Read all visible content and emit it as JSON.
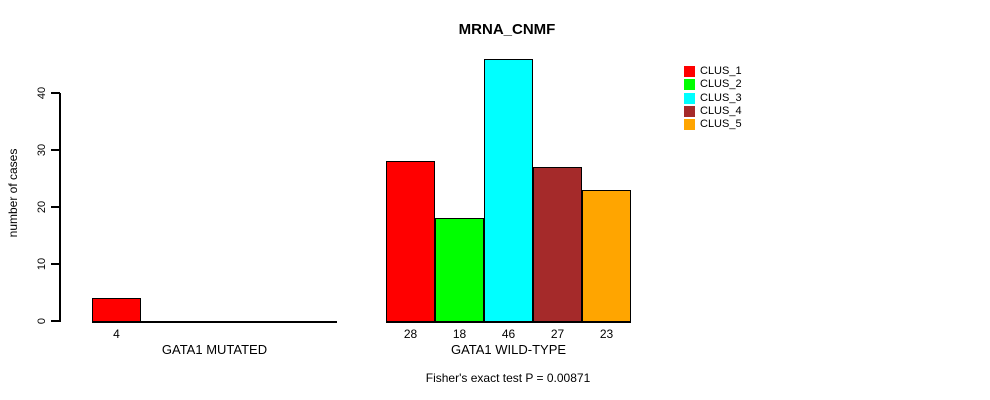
{
  "chart_data": {
    "type": "bar",
    "title": "MRNA_CNMF",
    "xlabel": "",
    "ylabel": "number of cases",
    "ylim": [
      0,
      46
    ],
    "yticks": [
      0,
      10,
      20,
      30,
      40
    ],
    "grid": false,
    "legend_position": "top-right",
    "categories": [
      "GATA1 MUTATED",
      "GATA1 WILD-TYPE"
    ],
    "series": [
      {
        "name": "CLUS_1",
        "color": "#FF0000",
        "values": [
          4,
          28
        ]
      },
      {
        "name": "CLUS_2",
        "color": "#00FF00",
        "values": [
          0,
          18
        ]
      },
      {
        "name": "CLUS_3",
        "color": "#00FFFF",
        "values": [
          0,
          46
        ]
      },
      {
        "name": "CLUS_4",
        "color": "#A52A2A",
        "values": [
          0,
          27
        ]
      },
      {
        "name": "CLUS_5",
        "color": "#FFA500",
        "values": [
          0,
          23
        ]
      }
    ],
    "bar_value_labels": [
      [
        "4",
        "",
        "",
        "",
        ""
      ],
      [
        "28",
        "18",
        "46",
        "27",
        "23"
      ]
    ],
    "annotation": "Fisher's exact test P = 0.00871"
  }
}
